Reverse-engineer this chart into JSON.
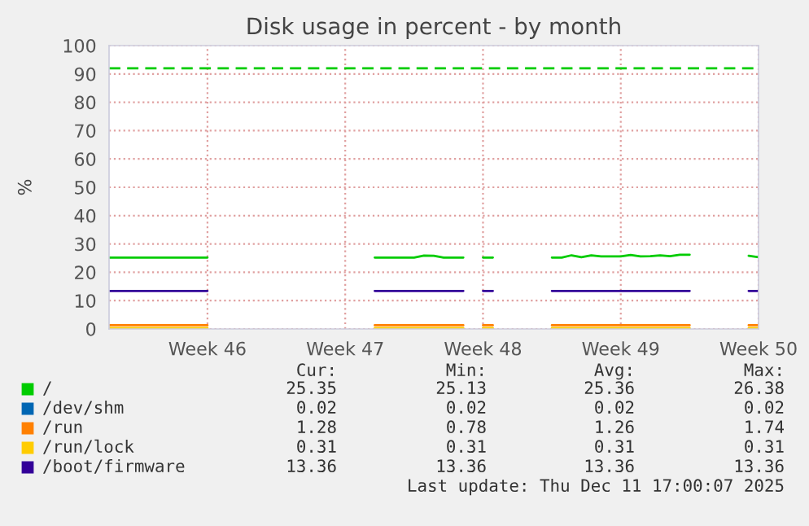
{
  "chart_data": {
    "type": "line",
    "title": "Disk usage in percent - by month",
    "ylabel": "%",
    "categories": [
      null,
      null,
      null,
      null,
      null,
      null,
      null,
      null,
      null,
      null,
      "Week 46",
      null,
      null,
      null,
      null,
      null,
      null,
      null,
      null,
      null,
      null,
      null,
      null,
      null,
      "Week 47",
      null,
      null,
      null,
      null,
      null,
      null,
      null,
      null,
      null,
      null,
      null,
      null,
      null,
      "Week 48",
      null,
      null,
      null,
      null,
      null,
      null,
      null,
      null,
      null,
      null,
      null,
      null,
      null,
      "Week 49",
      null,
      null,
      null,
      null,
      null,
      null,
      null,
      null,
      null,
      null,
      null,
      null,
      null,
      "Week 50"
    ],
    "series": [
      {
        "name": "/",
        "color": "#00cc00",
        "values": [
          25.2,
          25.2,
          25.2,
          25.2,
          25.2,
          25.2,
          25.2,
          25.2,
          25.2,
          25.2,
          25.2,
          null,
          null,
          null,
          null,
          null,
          null,
          null,
          null,
          null,
          null,
          null,
          null,
          null,
          null,
          null,
          null,
          25.2,
          25.2,
          25.2,
          25.2,
          25.2,
          25.9,
          25.8,
          25.2,
          25.2,
          25.2,
          null,
          25.2,
          25.2,
          null,
          null,
          null,
          null,
          null,
          25.2,
          25.2,
          26.0,
          25.3,
          26.0,
          25.6,
          25.6,
          25.6,
          26.1,
          25.6,
          25.7,
          26.0,
          25.7,
          26.2,
          26.2,
          null,
          null,
          null,
          null,
          null,
          25.8,
          25.3
        ]
      },
      {
        "name": "/dev/shm",
        "color": "#0066b3",
        "values": [
          null,
          null,
          null,
          null,
          null,
          null,
          null,
          null,
          null,
          null,
          null,
          null,
          null,
          null,
          null,
          null,
          null,
          null,
          null,
          null,
          null,
          null,
          null,
          null,
          null,
          null,
          null,
          null,
          null,
          null,
          null,
          null,
          null,
          null,
          null,
          null,
          null,
          null,
          null,
          null,
          null,
          null,
          null,
          null,
          null,
          null,
          null,
          null,
          null,
          null,
          null,
          null,
          null,
          null,
          null,
          null,
          null,
          null,
          null,
          null,
          null,
          null,
          null,
          null,
          null,
          null,
          null
        ]
      },
      {
        "name": "/run",
        "color": "#ff8000",
        "values": [
          1.3,
          1.3,
          1.3,
          1.3,
          1.3,
          1.3,
          1.3,
          1.3,
          1.3,
          1.3,
          1.3,
          null,
          null,
          null,
          null,
          null,
          null,
          null,
          null,
          null,
          null,
          null,
          null,
          null,
          null,
          null,
          null,
          1.3,
          1.3,
          1.3,
          1.3,
          1.3,
          1.3,
          1.3,
          1.3,
          1.3,
          1.3,
          null,
          1.3,
          1.3,
          null,
          null,
          null,
          null,
          null,
          1.3,
          1.3,
          1.3,
          1.3,
          1.3,
          1.3,
          1.3,
          1.3,
          1.3,
          1.3,
          1.3,
          1.3,
          1.3,
          1.3,
          1.3,
          null,
          null,
          null,
          null,
          null,
          1.3,
          1.3
        ]
      },
      {
        "name": "/run/lock",
        "color": "#ffcc00",
        "values": [
          0.3,
          0.3,
          0.3,
          0.3,
          0.3,
          0.3,
          0.3,
          0.3,
          0.3,
          0.3,
          0.3,
          null,
          null,
          null,
          null,
          null,
          null,
          null,
          null,
          null,
          null,
          null,
          null,
          null,
          null,
          null,
          null,
          0.3,
          0.3,
          0.3,
          0.3,
          0.3,
          0.3,
          0.3,
          0.3,
          0.3,
          0.3,
          null,
          0.3,
          0.3,
          null,
          null,
          null,
          null,
          null,
          0.3,
          0.3,
          0.3,
          0.3,
          0.3,
          0.3,
          0.3,
          0.3,
          0.3,
          0.3,
          0.3,
          0.3,
          0.3,
          0.3,
          0.3,
          null,
          null,
          null,
          null,
          null,
          0.3,
          0.3
        ]
      },
      {
        "name": "/boot/firmware",
        "color": "#330099",
        "values": [
          13.4,
          13.4,
          13.4,
          13.4,
          13.4,
          13.4,
          13.4,
          13.4,
          13.4,
          13.4,
          13.4,
          null,
          null,
          null,
          null,
          null,
          null,
          null,
          null,
          null,
          null,
          null,
          null,
          null,
          null,
          null,
          null,
          13.4,
          13.4,
          13.4,
          13.4,
          13.4,
          13.4,
          13.4,
          13.4,
          13.4,
          13.4,
          null,
          13.4,
          13.4,
          null,
          null,
          null,
          null,
          null,
          13.4,
          13.4,
          13.4,
          13.4,
          13.4,
          13.4,
          13.4,
          13.4,
          13.4,
          13.4,
          13.4,
          13.4,
          13.4,
          13.4,
          13.4,
          null,
          null,
          null,
          null,
          null,
          13.4,
          13.4
        ]
      }
    ],
    "ylim": [
      0,
      100
    ],
    "yticks": [
      0,
      10,
      20,
      30,
      40,
      50,
      60,
      70,
      80,
      90,
      100
    ],
    "ref_lines": [
      {
        "axis": "y",
        "value": 92,
        "label": null,
        "color": "#00cc00",
        "line_style": "dashed"
      }
    ],
    "grid": true,
    "legend": "bottom",
    "annotations": [
      "Cur:",
      "Min:",
      "Avg:",
      "Max:",
      "25.35",
      "25.13",
      "25.36",
      "26.38",
      "0.02",
      "0.02",
      "0.02",
      "0.02",
      "1.28",
      "0.78",
      "1.26",
      "1.74",
      "0.31",
      "0.31",
      "0.31",
      "0.31",
      "13.36",
      "13.36",
      "13.36",
      "13.36",
      "Last update: Thu Dec 11 17:00:07 2025"
    ]
  }
}
